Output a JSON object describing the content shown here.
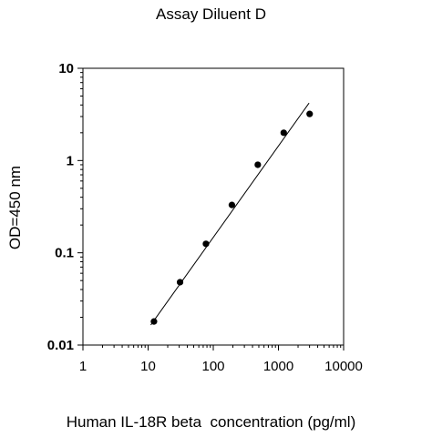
{
  "chart_data": {
    "type": "scatter",
    "title": "Assay Diluent D",
    "xlabel": "Human IL-18R beta  concentration (pg/ml)",
    "ylabel": "OD=450 nm",
    "x_scale": "log",
    "y_scale": "log",
    "xlim": [
      1,
      10000
    ],
    "ylim": [
      0.01,
      10
    ],
    "x_ticks": [
      1,
      10,
      100,
      1000,
      10000
    ],
    "x_tick_labels": [
      "1",
      "10",
      "100",
      "1000",
      "10000"
    ],
    "y_ticks": [
      0.01,
      0.1,
      1,
      10
    ],
    "y_tick_labels": [
      "0.01",
      "0.1",
      "1",
      "10"
    ],
    "grid": false,
    "legend": "none",
    "points": [
      {
        "x": 12.3,
        "y": 0.018
      },
      {
        "x": 30.9,
        "y": 0.048
      },
      {
        "x": 77.2,
        "y": 0.125
      },
      {
        "x": 193,
        "y": 0.33
      },
      {
        "x": 482,
        "y": 0.9
      },
      {
        "x": 1205,
        "y": 2.0
      },
      {
        "x": 3012,
        "y": 3.2
      }
    ],
    "fit_line": {
      "x_start": 11,
      "y_start": 0.0165,
      "x_end": 2950,
      "y_end": 4.2
    },
    "marker_color": "#000000",
    "line_color": "#000000"
  }
}
